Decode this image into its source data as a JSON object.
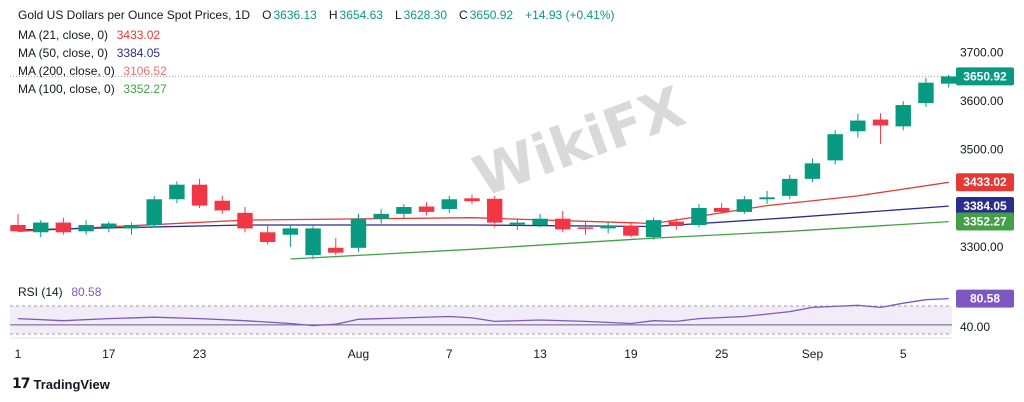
{
  "header": {
    "title": "Gold US Dollars per Ounce Spot Prices, 1D",
    "open_label": "O",
    "open": "3636.13",
    "high_label": "H",
    "high": "3654.63",
    "low_label": "L",
    "low": "3628.30",
    "close_label": "C",
    "close": "3650.92",
    "change": "+14.93 (+0.41%)"
  },
  "indicators": [
    {
      "label": "MA (21, close, 0)",
      "value": "3433.02",
      "color": "#e53935"
    },
    {
      "label": "MA (50, close, 0)",
      "value": "3384.05",
      "color": "#2a2e8a"
    },
    {
      "label": "MA (200, close, 0)",
      "value": "3106.52",
      "color": "#e57373"
    },
    {
      "label": "MA (100, close, 0)",
      "value": "3352.27",
      "color": "#43a047"
    }
  ],
  "rsi": {
    "label": "RSI (14)",
    "value": "80.58",
    "color": "#7e57c2"
  },
  "price_badges": [
    {
      "value": "3650.92",
      "color": "#089981"
    },
    {
      "value": "3433.02",
      "color": "#e53935"
    },
    {
      "value": "3384.05",
      "color": "#2a2e8a"
    },
    {
      "value": "3352.27",
      "color": "#43a047"
    }
  ],
  "watermark": "WikiFX",
  "footer": {
    "brand": "TradingView",
    "icon": "tradingview-logo-icon"
  },
  "colors": {
    "up": "#089981",
    "down": "#f23645"
  },
  "chart_data": {
    "type": "candlestick",
    "title": "Gold US Dollars per Ounce Spot Prices, 1D",
    "y_ticks": [
      "3700.00",
      "3600.00",
      "3500.00",
      "3300.00"
    ],
    "ylim": [
      3240,
      3730
    ],
    "rsi_ticks": [
      "40.00"
    ],
    "rsi_ylim": [
      30,
      90
    ],
    "x_ticks": [
      {
        "label": "1",
        "index": 0
      },
      {
        "label": "17",
        "index": 4
      },
      {
        "label": "23",
        "index": 8
      },
      {
        "label": "Aug",
        "index": 15
      },
      {
        "label": "7",
        "index": 19
      },
      {
        "label": "13",
        "index": 23
      },
      {
        "label": "19",
        "index": 27
      },
      {
        "label": "25",
        "index": 31
      },
      {
        "label": "Sep",
        "index": 35
      },
      {
        "label": "5",
        "index": 39
      }
    ],
    "candles": [
      [
        3345,
        3368,
        3335,
        3332
      ],
      [
        3330,
        3355,
        3320,
        3350
      ],
      [
        3350,
        3360,
        3325,
        3330
      ],
      [
        3332,
        3355,
        3325,
        3345
      ],
      [
        3340,
        3352,
        3330,
        3348
      ],
      [
        3338,
        3350,
        3325,
        3345
      ],
      [
        3345,
        3405,
        3340,
        3398
      ],
      [
        3398,
        3435,
        3390,
        3428
      ],
      [
        3428,
        3440,
        3380,
        3385
      ],
      [
        3395,
        3405,
        3368,
        3375
      ],
      [
        3370,
        3382,
        3330,
        3338
      ],
      [
        3330,
        3345,
        3305,
        3310
      ],
      [
        3325,
        3345,
        3300,
        3338
      ],
      [
        3283,
        3345,
        3275,
        3338
      ],
      [
        3298,
        3318,
        3283,
        3288
      ],
      [
        3298,
        3368,
        3290,
        3358
      ],
      [
        3358,
        3378,
        3348,
        3368
      ],
      [
        3368,
        3388,
        3358,
        3382
      ],
      [
        3383,
        3392,
        3365,
        3372
      ],
      [
        3378,
        3405,
        3370,
        3398
      ],
      [
        3400,
        3408,
        3388,
        3394
      ],
      [
        3399,
        3405,
        3340,
        3350
      ],
      [
        3346,
        3358,
        3335,
        3350
      ],
      [
        3345,
        3368,
        3340,
        3358
      ],
      [
        3358,
        3374,
        3330,
        3336
      ],
      [
        3340,
        3352,
        3325,
        3338
      ],
      [
        3338,
        3352,
        3328,
        3343
      ],
      [
        3343,
        3350,
        3320,
        3323
      ],
      [
        3320,
        3360,
        3315,
        3355
      ],
      [
        3352,
        3358,
        3335,
        3343
      ],
      [
        3345,
        3388,
        3340,
        3380
      ],
      [
        3380,
        3390,
        3368,
        3372
      ],
      [
        3372,
        3405,
        3368,
        3398
      ],
      [
        3398,
        3415,
        3388,
        3402
      ],
      [
        3405,
        3448,
        3398,
        3440
      ],
      [
        3440,
        3482,
        3433,
        3472
      ],
      [
        3478,
        3540,
        3470,
        3532
      ],
      [
        3538,
        3574,
        3525,
        3560
      ],
      [
        3562,
        3575,
        3512,
        3550
      ],
      [
        3548,
        3600,
        3540,
        3592
      ],
      [
        3596,
        3648,
        3588,
        3638
      ],
      [
        3636,
        3654,
        3628,
        3651
      ]
    ],
    "ma": [
      {
        "name": "MA (21, close, 0)",
        "color": "#e53935",
        "values": [
          [
            0,
            3332
          ],
          [
            10,
            3355
          ],
          [
            20,
            3360
          ],
          [
            28,
            3348
          ],
          [
            33,
            3385
          ],
          [
            37,
            3405
          ],
          [
            41,
            3433
          ]
        ]
      },
      {
        "name": "MA (50, close, 0)",
        "color": "#2a2e8a",
        "values": [
          [
            0,
            3335
          ],
          [
            10,
            3345
          ],
          [
            20,
            3345
          ],
          [
            28,
            3342
          ],
          [
            34,
            3360
          ],
          [
            41,
            3384
          ]
        ]
      },
      {
        "name": "MA (100, close, 0)",
        "color": "#43a047",
        "values": [
          [
            12,
            3275
          ],
          [
            20,
            3295
          ],
          [
            28,
            3318
          ],
          [
            34,
            3332
          ],
          [
            41,
            3352
          ]
        ]
      }
    ],
    "rsi_values": [
      [
        0,
        52
      ],
      [
        2,
        49
      ],
      [
        4,
        52
      ],
      [
        6,
        54
      ],
      [
        8,
        52
      ],
      [
        10,
        49
      ],
      [
        12,
        45
      ],
      [
        13,
        42
      ],
      [
        14,
        44
      ],
      [
        15,
        51
      ],
      [
        17,
        53
      ],
      [
        19,
        55
      ],
      [
        20,
        53
      ],
      [
        21,
        48
      ],
      [
        23,
        50
      ],
      [
        25,
        48
      ],
      [
        27,
        45
      ],
      [
        28,
        49
      ],
      [
        29,
        48
      ],
      [
        30,
        52
      ],
      [
        32,
        55
      ],
      [
        34,
        62
      ],
      [
        35,
        68
      ],
      [
        37,
        71
      ],
      [
        38,
        68
      ],
      [
        39,
        74
      ],
      [
        40,
        79
      ],
      [
        41,
        80.58
      ]
    ]
  }
}
